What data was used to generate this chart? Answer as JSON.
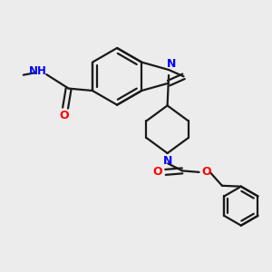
{
  "bg_color": "#ececec",
  "bond_color": "#1a1a1a",
  "N_color": "#0000ff",
  "O_color": "#ff0000",
  "lw": 1.6,
  "figsize": [
    3.0,
    3.0
  ],
  "dpi": 100,
  "xlim": [
    0,
    10
  ],
  "ylim": [
    0,
    10
  ]
}
